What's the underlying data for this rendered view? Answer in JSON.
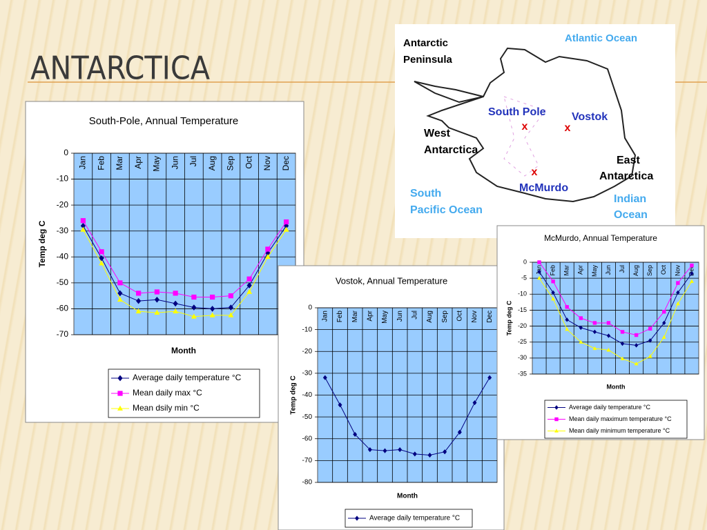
{
  "title": "ANTARCTICA",
  "map": {
    "antarctic_peninsula": [
      "Antarctic",
      "Peninsula"
    ],
    "atlantic_ocean": "Atlantic Ocean",
    "south_pole": "South Pole",
    "vostok": "Vostok",
    "west_antarctica": [
      "West",
      "Antarctica"
    ],
    "east_antarctica": [
      "East",
      "Antarctica"
    ],
    "mcmurdo": "McMurdo",
    "south_pacific_ocean": [
      "South",
      "Pacific Ocean"
    ],
    "indian_ocean": [
      "Indian",
      "Ocean"
    ]
  },
  "chart_data": [
    {
      "type": "line",
      "title": "South-Pole, Annual Temperature",
      "x_label": "Month",
      "y_label": "Temp deg C",
      "categories": [
        "Jan",
        "Feb",
        "Mar",
        "Apr",
        "May",
        "Jun",
        "Jul",
        "Aug",
        "Sep",
        "Oct",
        "Nov",
        "Dec"
      ],
      "ylim": [
        -70,
        0
      ],
      "yticks": [
        0,
        -10,
        -20,
        -30,
        -40,
        -50,
        -60,
        -70
      ],
      "grid": true,
      "plot_background": "#99ccff",
      "series": [
        {
          "name": "Average daily temperature °C",
          "color": "#000080",
          "marker": "diamond",
          "values": [
            -28,
            -40.5,
            -54,
            -57,
            -56.5,
            -58,
            -59.5,
            -60,
            -59.5,
            -51,
            -38.5,
            -28
          ]
        },
        {
          "name": "Mean daily max °C",
          "color": "#ff00ff",
          "marker": "square",
          "values": [
            -26,
            -38,
            -50,
            -54,
            -53.5,
            -54,
            -55.5,
            -55.5,
            -55,
            -48.5,
            -37,
            -26.5
          ]
        },
        {
          "name": "Mean dsily min °C",
          "color": "#ffff00",
          "marker": "triangle",
          "values": [
            -29.5,
            -42.5,
            -56.5,
            -61,
            -61.5,
            -61,
            -63,
            -62.5,
            -62.5,
            -53.5,
            -40,
            -29.5
          ]
        }
      ]
    },
    {
      "type": "line",
      "title": "Vostok, Annual Temperature",
      "x_label": "Month",
      "y_label": "Temp deg C",
      "categories": [
        "Jan",
        "Feb",
        "Mar",
        "Apr",
        "May",
        "Jun",
        "Jul",
        "Aug",
        "Sep",
        "Oct",
        "Nov",
        "Dec"
      ],
      "ylim": [
        -80,
        0
      ],
      "yticks": [
        0,
        -10,
        -20,
        -30,
        -40,
        -50,
        -60,
        -70,
        -80
      ],
      "grid": true,
      "plot_background": "#99ccff",
      "series": [
        {
          "name": "Average daily temperature °C",
          "color": "#000080",
          "marker": "diamond",
          "values": [
            -32,
            -44.5,
            -58,
            -65,
            -65.5,
            -65,
            -67,
            -67.5,
            -66,
            -57,
            -43.5,
            -32
          ]
        }
      ]
    },
    {
      "type": "line",
      "title": "McMurdo, Annual Temperature",
      "x_label": "Month",
      "y_label": "Temp deg C",
      "categories": [
        "Jan",
        "Feb",
        "Mar",
        "Apr",
        "May",
        "Jun",
        "Jul",
        "Aug",
        "Sep",
        "Oct",
        "Nov",
        "Dec"
      ],
      "ylim": [
        -35,
        0
      ],
      "yticks": [
        0,
        -5,
        -10,
        -15,
        -20,
        -25,
        -30,
        -35
      ],
      "grid": true,
      "plot_background": "#99ccff",
      "series": [
        {
          "name": "Average daily temperature °C",
          "color": "#000080",
          "marker": "diamond",
          "values": [
            -3,
            -9.5,
            -18,
            -20.5,
            -21.8,
            -23,
            -25.5,
            -26,
            -24.5,
            -19,
            -9.5,
            -3.5
          ]
        },
        {
          "name": "Mean daily maximum temperature °C",
          "color": "#ff00ff",
          "marker": "square",
          "values": [
            0,
            -6,
            -14,
            -17.5,
            -19,
            -19,
            -21.8,
            -22.8,
            -20.8,
            -15.5,
            -6.5,
            -1
          ]
        },
        {
          "name": "Mean daily minimum temperature °C",
          "color": "#ffff00",
          "marker": "triangle",
          "values": [
            -5,
            -11.5,
            -21,
            -25,
            -27,
            -27.5,
            -30.2,
            -31.8,
            -29.5,
            -23.5,
            -13,
            -6
          ]
        }
      ]
    }
  ]
}
